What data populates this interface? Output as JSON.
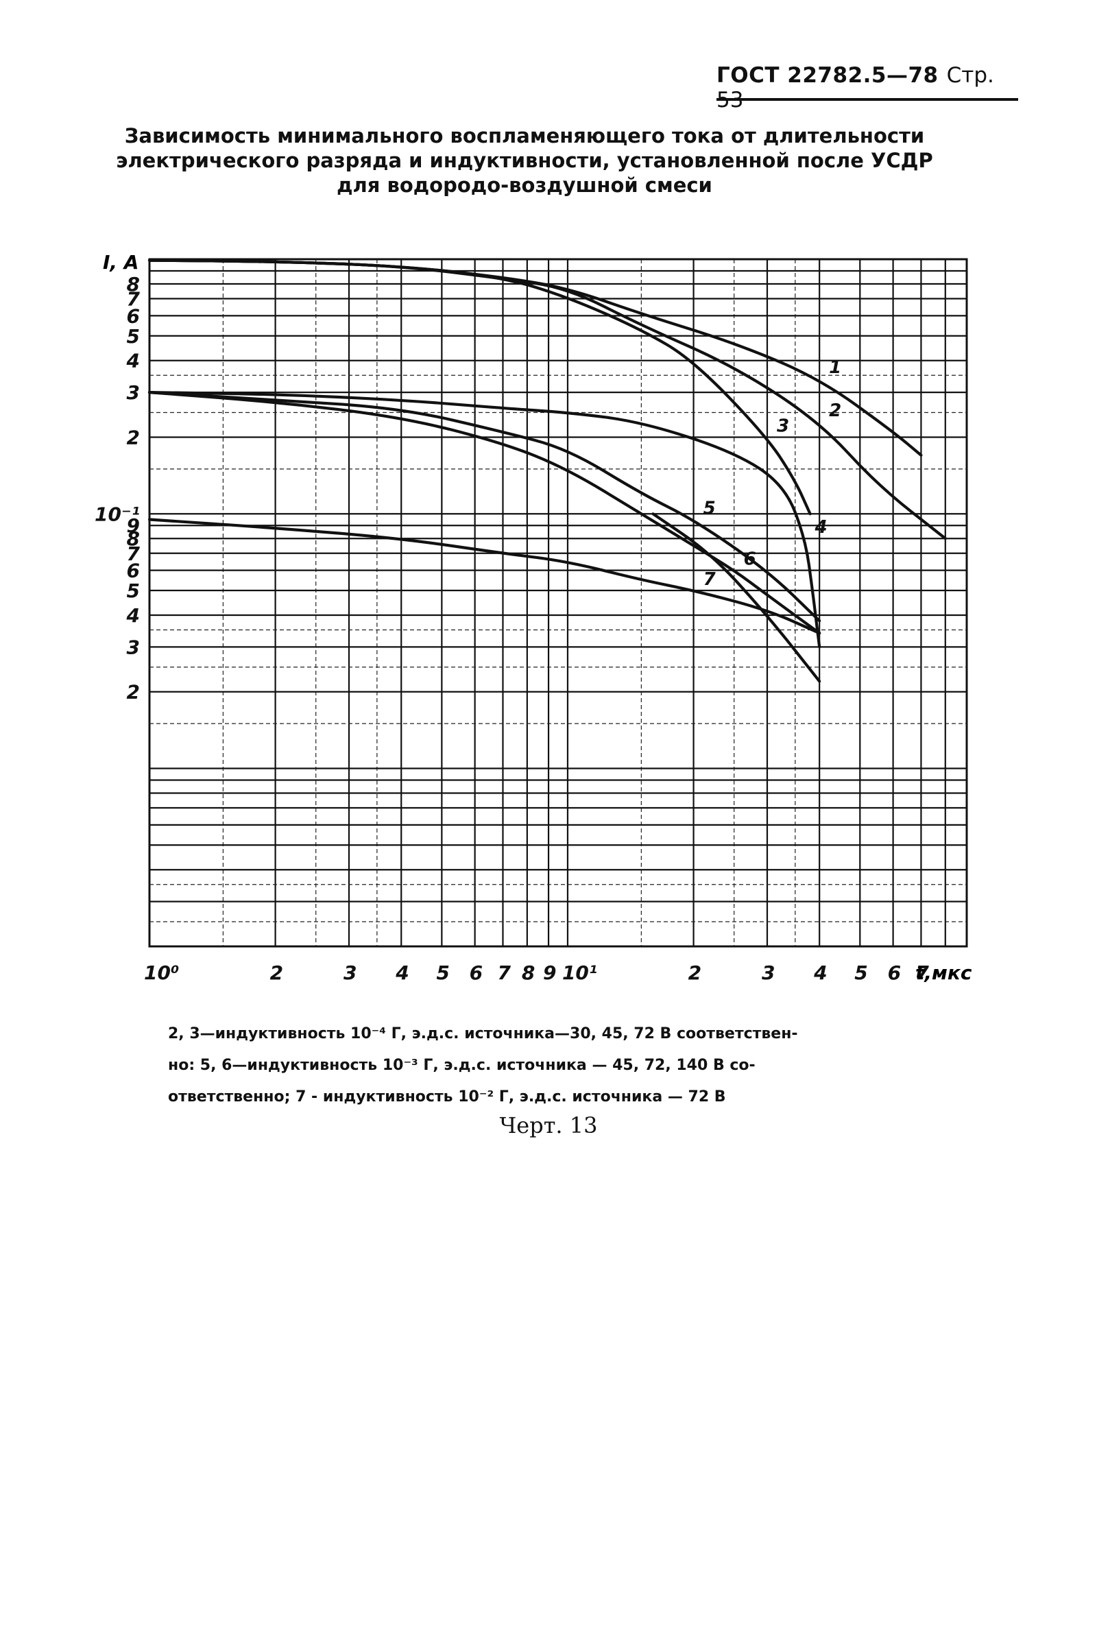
{
  "header": {
    "standard": "ГОСТ 22782.5—78",
    "page": "Стр. 53"
  },
  "title_lines": [
    "Зависимость минимального воспламеняющего тока от длительности",
    "электрического разряда и индуктивности, установленной после УСДР",
    "для водородо-воздушной смеси"
  ],
  "note_lines": [
    "2, 3—индуктивность 10⁻⁴ Г, э.д.с. источника—30, 45, 72 В соответствен-",
    "но: 5, 6—индуктивность 10⁻³ Г, э.д.с. источника — 45, 72, 140 В со-",
    "ответственно; 7 - индуктивность 10⁻² Г, э.д.с. источника — 72 В"
  ],
  "figure_label": "Черт. 13",
  "chart_data": {
    "type": "line",
    "title": "",
    "xlabel": "t,мкс",
    "ylabel": "I, А",
    "xscale": "log",
    "yscale": "log",
    "xlim": [
      1,
      90
    ],
    "ylim": [
      0.02,
      10
    ],
    "x_tick_labels": [
      {
        "v": 1,
        "t": "10⁰"
      },
      {
        "v": 2,
        "t": "2"
      },
      {
        "v": 3,
        "t": "3"
      },
      {
        "v": 4,
        "t": "4"
      },
      {
        "v": 5,
        "t": "5"
      },
      {
        "v": 6,
        "t": "6"
      },
      {
        "v": 7,
        "t": "7"
      },
      {
        "v": 8,
        "t": "8"
      },
      {
        "v": 9,
        "t": "9"
      },
      {
        "v": 10,
        "t": "10¹"
      },
      {
        "v": 20,
        "t": "2"
      },
      {
        "v": 30,
        "t": "3"
      },
      {
        "v": 40,
        "t": "4"
      },
      {
        "v": 50,
        "t": "5"
      },
      {
        "v": 60,
        "t": "6"
      },
      {
        "v": 70,
        "t": "7"
      }
    ],
    "y_tick_labels": [
      {
        "v": 8,
        "t": "8"
      },
      {
        "v": 7,
        "t": "7"
      },
      {
        "v": 6,
        "t": "6"
      },
      {
        "v": 5,
        "t": "5"
      },
      {
        "v": 4,
        "t": "4"
      },
      {
        "v": 3,
        "t": "3"
      },
      {
        "v": 2,
        "t": "2"
      },
      {
        "v": 1,
        "t": "10⁻¹"
      },
      {
        "v": 0.9,
        "t": "9"
      },
      {
        "v": 0.8,
        "t": "8"
      },
      {
        "v": 0.7,
        "t": "7"
      },
      {
        "v": 0.6,
        "t": "6"
      },
      {
        "v": 0.5,
        "t": "5"
      },
      {
        "v": 0.4,
        "t": "4"
      },
      {
        "v": 0.3,
        "t": "3"
      },
      {
        "v": 0.2,
        "t": "2"
      }
    ],
    "series": [
      {
        "name": "1",
        "points": [
          [
            1,
            9.9
          ],
          [
            2,
            9.8
          ],
          [
            4,
            9.4
          ],
          [
            7,
            8.5
          ],
          [
            10,
            7.7
          ],
          [
            15,
            6.1
          ],
          [
            25,
            4.7
          ],
          [
            40,
            3.4
          ],
          [
            60,
            2.1
          ],
          [
            70,
            1.7
          ]
        ]
      },
      {
        "name": "2",
        "points": [
          [
            1,
            9.9
          ],
          [
            2,
            9.8
          ],
          [
            4,
            9.4
          ],
          [
            7,
            8.4
          ],
          [
            10,
            7.7
          ],
          [
            15,
            5.5
          ],
          [
            25,
            3.8
          ],
          [
            40,
            2.3
          ],
          [
            55,
            1.3
          ],
          [
            80,
            0.8
          ]
        ]
      },
      {
        "name": "3",
        "points": [
          [
            1,
            9.9
          ],
          [
            2,
            9.8
          ],
          [
            4,
            9.4
          ],
          [
            7,
            8.5
          ],
          [
            10,
            7.1
          ],
          [
            15,
            5.3
          ],
          [
            20,
            4.0
          ],
          [
            30,
            2.0
          ],
          [
            35,
            1.35
          ],
          [
            38,
            1.0
          ]
        ]
      },
      {
        "name": "4",
        "points": [
          [
            1,
            3.0
          ],
          [
            2,
            2.95
          ],
          [
            4,
            2.8
          ],
          [
            7,
            2.6
          ],
          [
            10,
            2.5
          ],
          [
            15,
            2.3
          ],
          [
            25,
            1.75
          ],
          [
            33,
            1.3
          ],
          [
            37,
            0.8
          ],
          [
            38.5,
            0.5
          ],
          [
            40,
            0.3
          ]
        ]
      },
      {
        "name": "5",
        "points": [
          [
            1,
            3.0
          ],
          [
            2,
            2.8
          ],
          [
            4,
            2.6
          ],
          [
            7,
            2.1
          ],
          [
            10,
            1.8
          ],
          [
            15,
            1.2
          ],
          [
            20,
            0.95
          ],
          [
            30,
            0.6
          ],
          [
            40,
            0.38
          ]
        ]
      },
      {
        "name": "6",
        "points": [
          [
            1,
            3.0
          ],
          [
            2,
            2.75
          ],
          [
            4,
            2.4
          ],
          [
            7,
            1.9
          ],
          [
            10,
            1.5
          ],
          [
            15,
            1.0
          ],
          [
            20,
            0.75
          ],
          [
            25,
            0.6
          ],
          [
            30,
            0.48
          ],
          [
            40,
            0.34
          ]
        ]
      },
      {
        "name": "7",
        "points": [
          [
            1,
            0.95
          ],
          [
            2,
            0.88
          ],
          [
            4,
            0.8
          ],
          [
            7,
            0.7
          ],
          [
            10,
            0.65
          ],
          [
            15,
            0.55
          ],
          [
            20,
            0.5
          ],
          [
            30,
            0.42
          ],
          [
            40,
            0.34
          ]
        ]
      },
      {
        "name": "",
        "points": [
          [
            16,
            1.0
          ],
          [
            22,
            0.7
          ],
          [
            30,
            0.4
          ],
          [
            40,
            0.22
          ]
        ]
      }
    ]
  }
}
